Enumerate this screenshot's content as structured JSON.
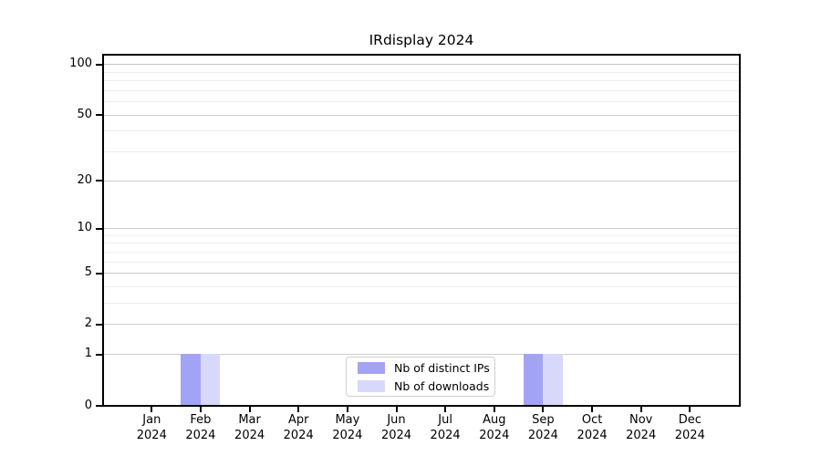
{
  "chart_data": {
    "type": "bar",
    "title": "IRdisplay 2024",
    "categories": [
      "Jan 2024",
      "Feb 2024",
      "Mar 2024",
      "Apr 2024",
      "May 2024",
      "Jun 2024",
      "Jul 2024",
      "Aug 2024",
      "Sep 2024",
      "Oct 2024",
      "Nov 2024",
      "Dec 2024"
    ],
    "series": [
      {
        "name": "Nb of distinct IPs",
        "color": "#a3a3f5",
        "values": [
          0,
          1,
          0,
          0,
          0,
          0,
          0,
          0,
          1,
          0,
          0,
          0
        ]
      },
      {
        "name": "Nb of downloads",
        "color": "#d8d8fa",
        "values": [
          0,
          1,
          0,
          0,
          0,
          0,
          0,
          0,
          1,
          0,
          0,
          0
        ]
      }
    ],
    "xlabel": "",
    "ylabel": "",
    "y_scale": "log1p",
    "y_major_ticks": [
      0,
      1,
      2,
      5,
      10,
      20,
      50,
      100
    ],
    "y_minor_gridlines": [
      3,
      4,
      6,
      7,
      8,
      9,
      30,
      40,
      60,
      70,
      80,
      90
    ],
    "ylim": [
      0,
      115
    ],
    "grid": "horizontal",
    "legend_position": "bottom-center-inside",
    "colors": {
      "major_grid": "#cccccc",
      "minor_grid": "#ededed",
      "grid_100": "#c4c4c4",
      "axis": "#000000",
      "legend_border": "#cfcfcf",
      "background": "#ffffff",
      "text": "#000000"
    }
  }
}
